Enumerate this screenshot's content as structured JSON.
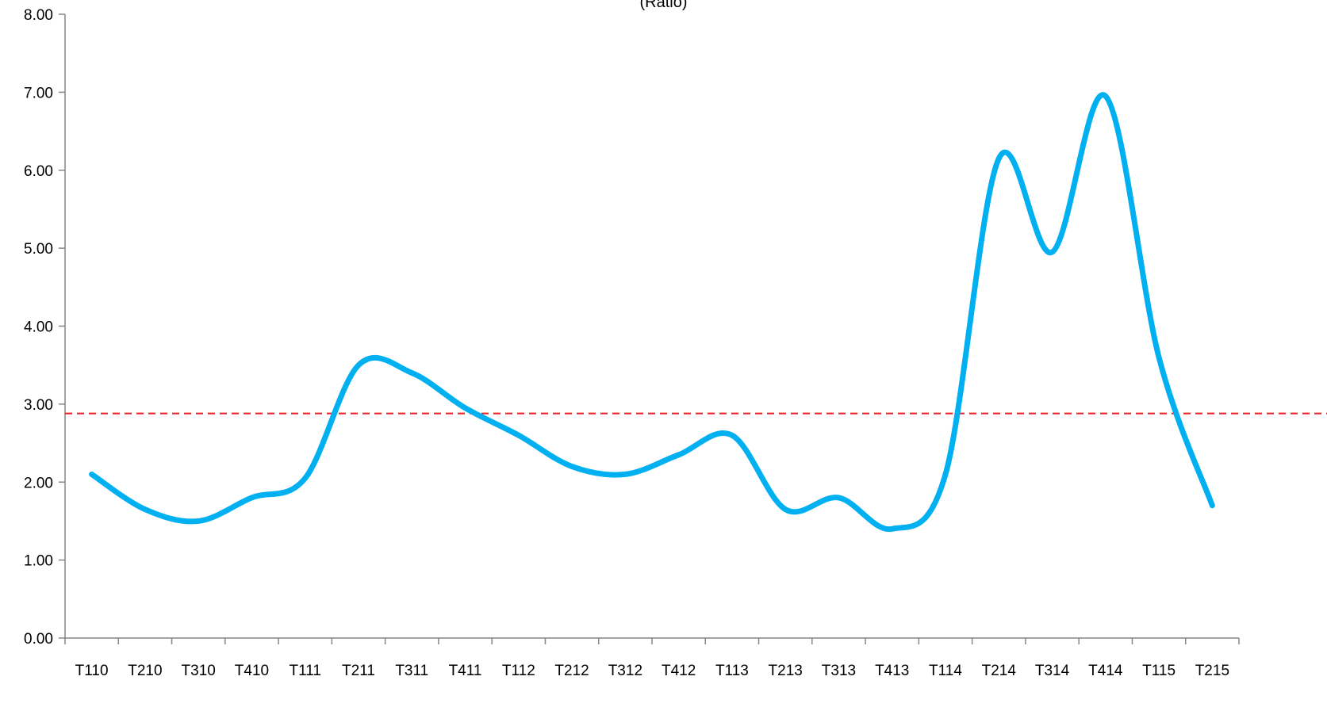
{
  "chart_data": {
    "type": "line",
    "title": "",
    "subtitle": "(Ratio)",
    "xlabel": "",
    "ylabel": "",
    "categories": [
      "T110",
      "T210",
      "T310",
      "T410",
      "T111",
      "T211",
      "T311",
      "T411",
      "T112",
      "T212",
      "T312",
      "T412",
      "T113",
      "T213",
      "T313",
      "T413",
      "T114",
      "T214",
      "T314",
      "T414",
      "T115",
      "T215"
    ],
    "series": [
      {
        "values": [
          2.1,
          1.65,
          1.5,
          1.8,
          2.05,
          3.5,
          3.4,
          2.95,
          2.6,
          2.2,
          2.1,
          2.35,
          2.6,
          1.65,
          1.8,
          1.4,
          2.1,
          6.15,
          4.95,
          6.95,
          3.6,
          1.7
        ],
        "color": "#00b0f0"
      }
    ],
    "reference_line": {
      "value": 2.88,
      "color": "#e8262b",
      "style": "dashed"
    },
    "ylim": [
      0,
      8
    ],
    "yticks": [
      "0.00",
      "1.00",
      "2.00",
      "3.00",
      "4.00",
      "5.00",
      "6.00",
      "7.00",
      "8.00"
    ],
    "grid": false,
    "legend": "none"
  }
}
